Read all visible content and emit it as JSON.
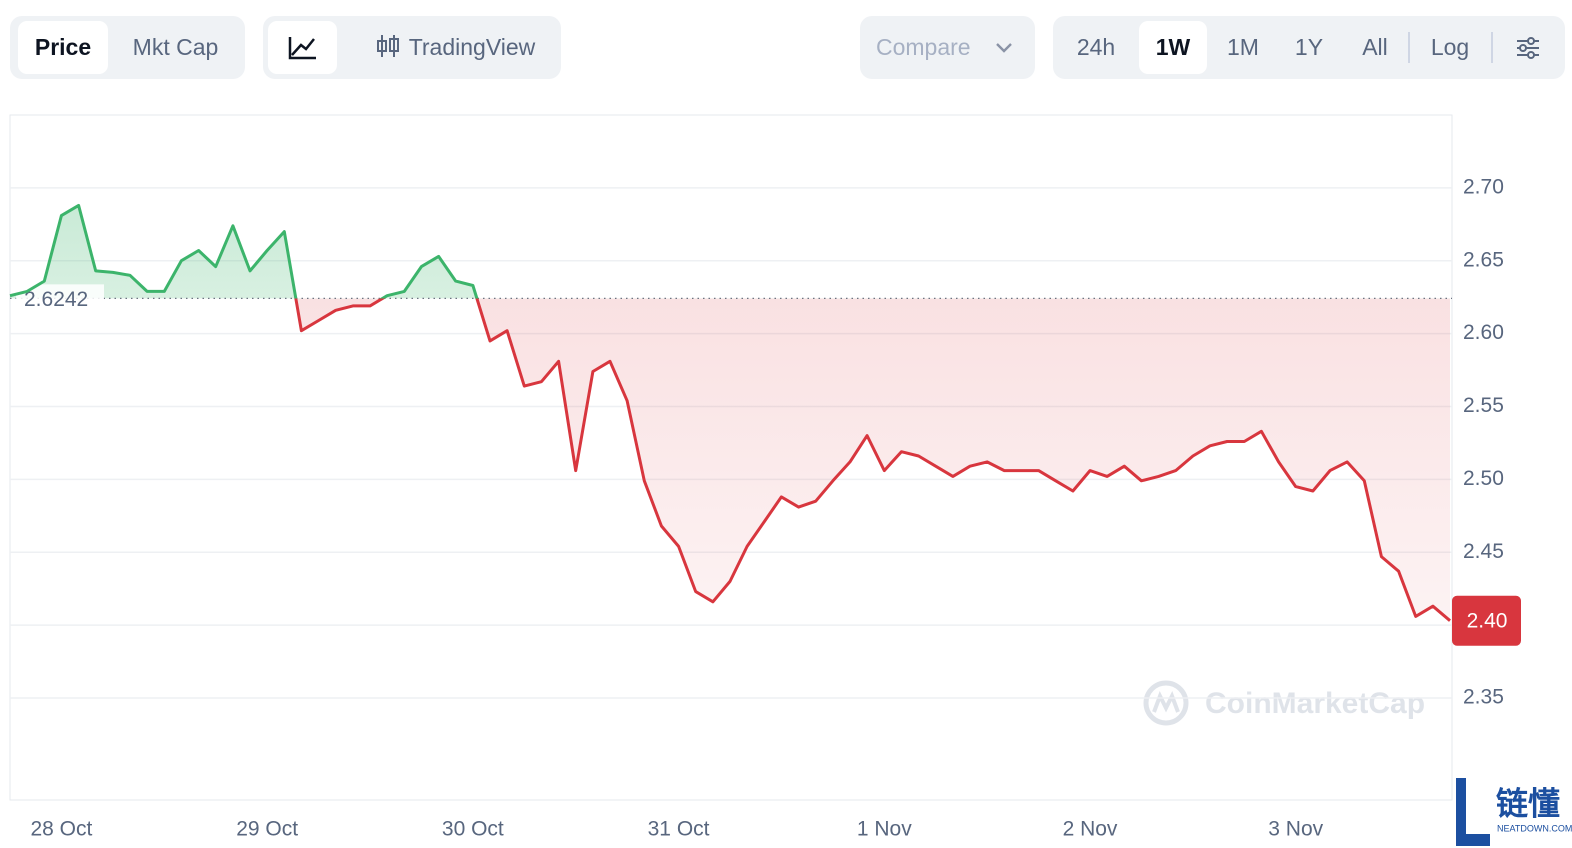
{
  "toolbar": {
    "tabs": [
      "Price",
      "Mkt Cap"
    ],
    "view": "TradingView",
    "compare": "Compare",
    "ranges": [
      "24h",
      "1W",
      "1M",
      "1Y",
      "All"
    ],
    "log": "Log"
  },
  "watermark": "CoinMarketCap",
  "logo": {
    "text": "链懂",
    "sub": "NEATDOWN.COM"
  },
  "chart_data": {
    "type": "line",
    "categories": [
      null,
      null,
      null,
      "28 Oct",
      null,
      null,
      null,
      null,
      null,
      null,
      null,
      null,
      null,
      null,
      null,
      "29 Oct",
      null,
      null,
      null,
      null,
      null,
      null,
      null,
      null,
      null,
      null,
      null,
      "30 Oct",
      null,
      null,
      null,
      null,
      null,
      null,
      null,
      null,
      null,
      null,
      null,
      "31 Oct",
      null,
      null,
      null,
      null,
      null,
      null,
      null,
      null,
      null,
      null,
      null,
      "1 Nov",
      null,
      null,
      null,
      null,
      null,
      null,
      null,
      null,
      null,
      null,
      null,
      "2 Nov",
      null,
      null,
      null,
      null,
      null,
      null,
      null,
      null,
      null,
      null,
      null,
      "3 Nov",
      null,
      null,
      null,
      null,
      null,
      null,
      null,
      null,
      null
    ],
    "values": [
      2.626,
      2.629,
      2.636,
      2.681,
      2.688,
      2.643,
      2.642,
      2.64,
      2.629,
      2.629,
      2.65,
      2.657,
      2.646,
      2.674,
      2.643,
      2.657,
      2.67,
      2.602,
      2.609,
      2.616,
      2.619,
      2.619,
      2.626,
      2.629,
      2.646,
      2.653,
      2.636,
      2.633,
      2.595,
      2.602,
      2.564,
      2.567,
      2.581,
      2.506,
      2.574,
      2.581,
      2.554,
      2.499,
      2.468,
      2.454,
      2.423,
      2.416,
      2.43,
      2.454,
      2.471,
      2.488,
      2.481,
      2.485,
      2.499,
      2.512,
      2.53,
      2.506,
      2.519,
      2.516,
      2.509,
      2.502,
      2.509,
      2.512,
      2.506,
      2.506,
      2.506,
      2.499,
      2.492,
      2.506,
      2.502,
      2.509,
      2.499,
      2.502,
      2.506,
      2.516,
      2.523,
      2.526,
      2.526,
      2.533,
      2.512,
      2.495,
      2.492,
      2.506,
      2.512,
      2.499,
      2.447,
      2.437,
      2.406,
      2.413,
      2.403
    ],
    "value_labels": [
      null,
      null,
      null,
      null,
      null,
      null,
      null,
      null,
      null,
      null,
      null,
      null,
      null,
      null,
      null,
      null,
      null,
      null,
      null,
      null,
      null,
      null,
      null,
      null,
      null,
      null,
      null,
      null,
      null,
      null,
      null,
      null,
      null,
      null,
      null,
      null,
      null,
      null,
      null,
      null,
      null,
      null,
      null,
      null,
      null,
      null,
      null,
      null,
      null,
      null,
      null,
      null,
      null,
      null,
      null,
      null,
      null,
      null,
      null,
      null,
      null,
      null,
      null,
      null,
      null,
      null,
      null,
      null,
      null,
      null,
      null,
      null,
      null,
      null,
      null,
      null,
      null,
      null,
      null,
      null,
      null,
      null,
      null,
      null,
      "2.40"
    ],
    "baseline": 2.6242,
    "up_color": "#3cb46b",
    "down_color": "#d8363e",
    "ylim": [
      2.28,
      2.75
    ],
    "yticks": [
      2.35,
      {
        "value": 2.4,
        "label": "2.40"
      },
      2.45,
      {
        "value": 2.5,
        "label": "2.50"
      },
      2.55,
      {
        "value": 2.6,
        "label": "2.60"
      },
      2.65,
      {
        "value": 2.7,
        "label": "2.70"
      }
    ],
    "grid": true
  }
}
